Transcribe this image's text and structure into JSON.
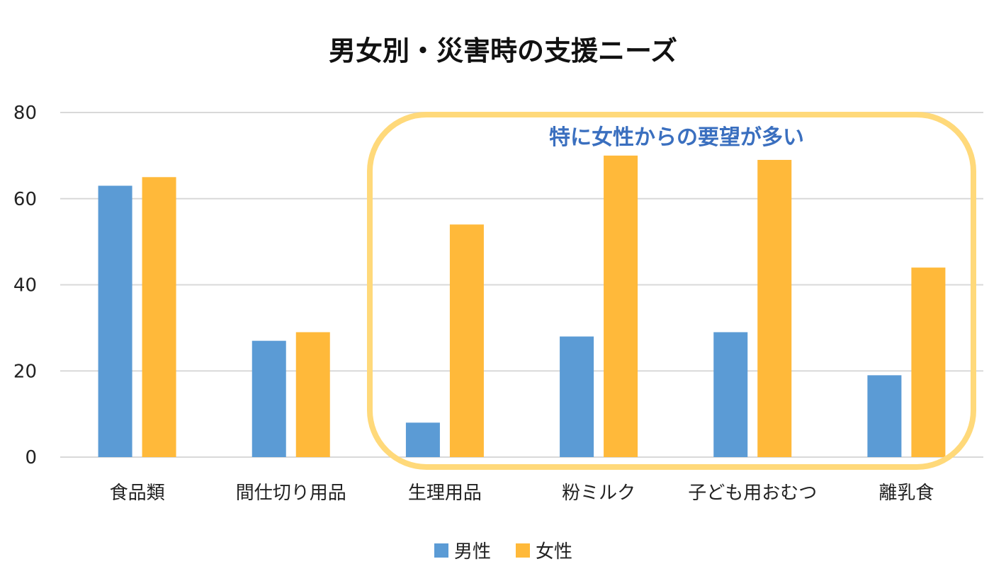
{
  "chart_data": {
    "type": "bar",
    "title": "男女別・災害時の支援ニーズ",
    "categories": [
      "食品類",
      "間仕切り用品",
      "生理用品",
      "粉ミルク",
      "子ども用おむつ",
      "離乳食"
    ],
    "series": [
      {
        "name": "男性",
        "values": [
          63,
          27,
          8,
          28,
          29,
          19
        ],
        "color": "#5B9BD5"
      },
      {
        "name": "女性",
        "values": [
          65,
          29,
          54,
          70,
          69,
          44
        ],
        "color": "#FFB93A"
      }
    ],
    "ylim": [
      0,
      80
    ],
    "yticks": [
      0,
      20,
      40,
      60,
      80
    ],
    "grid": true,
    "legend": "bottom",
    "annotation": {
      "text": "特に女性からの要望が多い",
      "color": "#3A6FBF",
      "highlight_color": "#FFD97A",
      "highlighted_categories": [
        "生理用品",
        "粉ミルク",
        "子ども用おむつ",
        "離乳食"
      ]
    }
  }
}
